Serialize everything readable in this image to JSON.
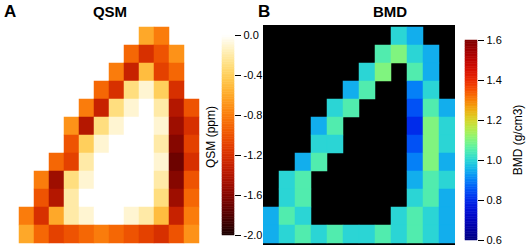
{
  "chart_data": [
    {
      "type": "heatmap",
      "panel": "A",
      "title": "QSM",
      "colorbar_label": "QSM (ppm)",
      "colorbar_range": [
        -2.0,
        0.0
      ],
      "colorbar_ticks": [
        {
          "value": 0,
          "label": "0.0"
        },
        -0.4,
        -0.8,
        -1.2,
        -1.6,
        {
          "value": -2,
          "label": "-2.0"
        }
      ],
      "cells": [
        [
          null,
          null,
          null,
          null,
          null,
          null,
          null,
          null,
          -0.6,
          -0.8,
          null,
          null
        ],
        [
          null,
          null,
          null,
          null,
          null,
          null,
          null,
          -0.9,
          -1.2,
          -1.0,
          -0.7,
          null
        ],
        [
          null,
          null,
          null,
          null,
          null,
          null,
          -0.8,
          -1.3,
          -0.5,
          -1.1,
          -0.9,
          null
        ],
        [
          null,
          null,
          null,
          null,
          null,
          -0.9,
          -1.2,
          -0.3,
          -0.1,
          -0.4,
          -1.2,
          null
        ],
        [
          null,
          null,
          null,
          null,
          -0.8,
          -1.3,
          -0.3,
          -0.1,
          0,
          -0.2,
          -1.4,
          -1.0
        ],
        [
          null,
          null,
          null,
          -0.7,
          -1.4,
          -0.3,
          -0.1,
          0,
          0,
          -0.1,
          -1.5,
          -1.2
        ],
        [
          null,
          null,
          null,
          -1.0,
          -0.4,
          -0.1,
          0,
          0,
          0,
          -0.2,
          -1.6,
          -1.1
        ],
        [
          null,
          null,
          -0.9,
          -1.1,
          -0.2,
          0,
          0,
          0,
          0,
          -0.1,
          -1.7,
          -1.2
        ],
        [
          null,
          -0.8,
          -1.5,
          -0.3,
          -0.1,
          0,
          0,
          0,
          0,
          -0.2,
          -1.6,
          -1.0
        ],
        [
          null,
          -1.0,
          -1.4,
          -0.2,
          0,
          0,
          0,
          0,
          0,
          -0.3,
          -1.5,
          -0.9
        ],
        [
          -0.8,
          -1.2,
          -0.6,
          -0.2,
          -0.1,
          0,
          0,
          -0.1,
          -0.2,
          -0.5,
          -1.3,
          -0.8
        ],
        [
          -0.6,
          -0.9,
          -1.1,
          -1.0,
          -0.9,
          -0.8,
          -0.9,
          -1.0,
          -1.1,
          -1.2,
          -1.0,
          -0.7
        ]
      ]
    },
    {
      "type": "heatmap",
      "panel": "B",
      "title": "BMD",
      "colorbar_label": "BMD (g/cm3)",
      "colorbar_range": [
        0.6,
        1.6
      ],
      "colorbar_ticks": [
        0.6,
        0.8,
        {
          "value": 1,
          "label": "1.0"
        },
        1.2,
        1.4,
        1.6
      ],
      "cells": [
        [
          null,
          null,
          null,
          null,
          null,
          null,
          null,
          null,
          1.0,
          0.95,
          null,
          null
        ],
        [
          null,
          null,
          null,
          null,
          null,
          null,
          null,
          1.05,
          1.1,
          1.0,
          0.95,
          null
        ],
        [
          null,
          null,
          null,
          null,
          null,
          null,
          1.0,
          1.1,
          null,
          1.05,
          0.95,
          null
        ],
        [
          null,
          null,
          null,
          null,
          null,
          0.95,
          1.05,
          null,
          null,
          0.9,
          1.0,
          null
        ],
        [
          null,
          null,
          null,
          null,
          1.0,
          1.05,
          null,
          null,
          null,
          0.85,
          1.05,
          0.95
        ],
        [
          null,
          null,
          null,
          0.95,
          1.05,
          null,
          null,
          null,
          null,
          0.8,
          1.1,
          1.0
        ],
        [
          null,
          null,
          null,
          1.0,
          1.0,
          null,
          null,
          null,
          null,
          0.85,
          1.1,
          1.0
        ],
        [
          null,
          null,
          0.95,
          1.05,
          null,
          null,
          null,
          null,
          null,
          0.9,
          1.1,
          0.95
        ],
        [
          null,
          1.0,
          1.05,
          null,
          null,
          null,
          null,
          null,
          null,
          0.95,
          1.05,
          1.0
        ],
        [
          null,
          1.0,
          1.05,
          null,
          null,
          null,
          null,
          null,
          null,
          1.0,
          1.05,
          0.95
        ],
        [
          0.95,
          1.05,
          1.0,
          null,
          null,
          null,
          null,
          null,
          1.0,
          1.05,
          1.0,
          0.95
        ],
        [
          0.95,
          1.0,
          1.05,
          1.0,
          1.05,
          1.0,
          1.0,
          1.05,
          1.0,
          1.05,
          1.0,
          0.95
        ]
      ]
    }
  ]
}
